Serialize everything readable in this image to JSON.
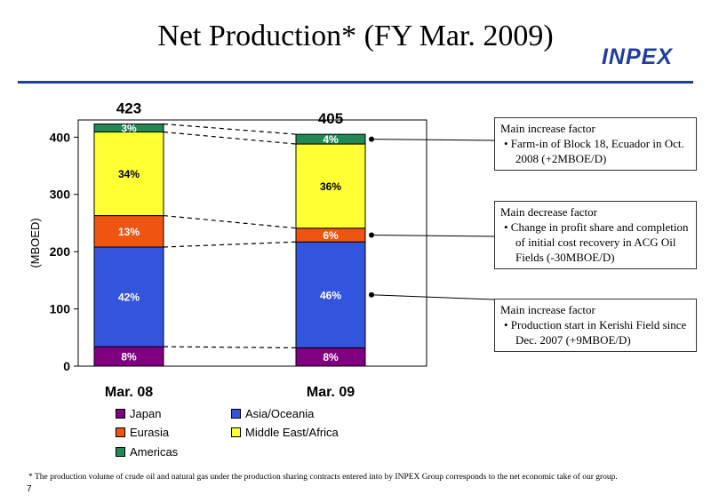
{
  "page": {
    "title": "Net Production* (FY Mar. 2009)",
    "logo_text": "INPEX",
    "footnote": "* The production volume of crude oil and natural gas under the production sharing contracts entered into by INPEX Group corresponds to the net economic take of our group.",
    "page_number": "7"
  },
  "colors": {
    "Japan": "#800080",
    "Asia/Oceania": "#3355dd",
    "Eurasia": "#ee5511",
    "Middle East/Africa": "#ffff33",
    "Americas": "#228855",
    "accent": "#1e3fa0"
  },
  "chart_data": {
    "type": "bar",
    "stacked": true,
    "categories": [
      "Mar. 08",
      "Mar. 09"
    ],
    "totals": [
      423,
      405
    ],
    "ylabel": "(MBOED)",
    "ylim": [
      0,
      430
    ],
    "yticks": [
      0,
      100,
      200,
      300,
      400
    ],
    "series": [
      {
        "name": "Japan",
        "values": [
          34,
          32
        ],
        "labels": [
          "8%",
          "8%"
        ]
      },
      {
        "name": "Asia/Oceania",
        "values": [
          174,
          185
        ],
        "labels": [
          "42%",
          "46%"
        ]
      },
      {
        "name": "Eurasia",
        "values": [
          55,
          24
        ],
        "labels": [
          "13%",
          "6%"
        ]
      },
      {
        "name": "Middle East/Africa",
        "values": [
          146,
          147
        ],
        "labels": [
          "34%",
          "36%"
        ]
      },
      {
        "name": "Americas",
        "values": [
          14,
          17
        ],
        "labels": [
          "3%",
          "4%"
        ]
      }
    ]
  },
  "notes": [
    {
      "heading": "Main increase factor",
      "bullet": "•  Farm-in of Block 18, Ecuador in Oct. 2008 (+2MBOE/D)"
    },
    {
      "heading": "Main decrease factor",
      "bullet": "•  Change in profit share and completion of initial cost recovery in ACG Oil Fields (-30MBOE/D)"
    },
    {
      "heading": "Main increase factor",
      "bullet": "•  Production start in Kerishi Field since Dec. 2007 (+9MBOE/D)"
    }
  ]
}
